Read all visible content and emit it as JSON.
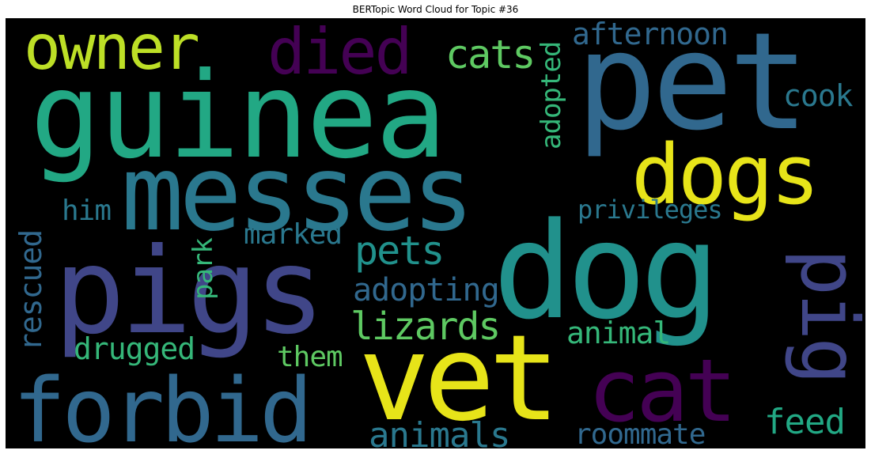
{
  "title": "BERTopic Word Cloud for Topic #36",
  "words": {
    "guinea": "guinea",
    "pet": "pet",
    "messes": "messes",
    "dog": "dog",
    "pigs": "pigs",
    "vet": "vet",
    "forbid": "forbid",
    "cat": "cat",
    "dogs": "dogs",
    "pig": "pig",
    "owner": "owner",
    "died": "died",
    "cats": "cats",
    "afternoon": "afternoon",
    "cook": "cook",
    "adopted": "adopted",
    "privileges": "privileges",
    "him": "him",
    "rescued": "rescued",
    "park": "park",
    "marked": "marked",
    "pets": "pets",
    "adopting": "adopting",
    "lizards": "lizards",
    "animal": "animal",
    "drugged": "drugged",
    "them": "them",
    "feed": "feed",
    "animals": "animals",
    "roommate": "roommate"
  },
  "colors": {
    "background": "#000000",
    "teal_green": "#22a884",
    "steel_blue": "#31688e",
    "dark_teal": "#26828e",
    "indigo": "#443983",
    "purple": "#440154",
    "yellow": "#e7e419",
    "lime": "#bddf26",
    "green": "#35b779",
    "mid_teal": "#2a788e"
  }
}
